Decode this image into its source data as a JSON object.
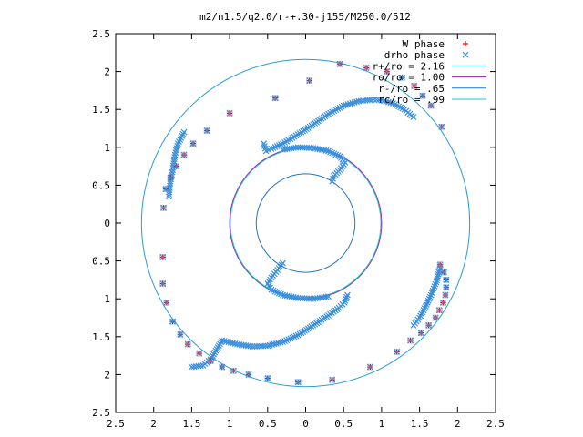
{
  "chart_data": {
    "type": "scatter",
    "title": "m2/n1.5/q2.0/r-+.30-j155/M250.0/512",
    "xlabel": "",
    "ylabel": "",
    "xlim": [
      -2.5,
      2.5
    ],
    "ylim": [
      -2.5,
      2.5
    ],
    "xtick_values": [
      -2.5,
      -2,
      -1.5,
      -1,
      -0.5,
      0,
      0.5,
      1,
      1.5,
      2,
      2.5
    ],
    "xtick_labels": [
      "2.5",
      "2",
      "1.5",
      "1",
      "0.5",
      "0",
      "0.5",
      "1",
      "1.5",
      "2",
      "2.5"
    ],
    "ytick_values": [
      2.5,
      2,
      1.5,
      1,
      0.5,
      0,
      -0.5,
      -1,
      -1.5,
      -2,
      -2.5
    ],
    "ytick_labels": [
      "2.5",
      "2",
      "1.5",
      "1",
      "0.5",
      "0",
      "0.5",
      "1",
      "1.5",
      "2",
      "2.5"
    ],
    "grid": false,
    "legend_position": "top-right",
    "series": [
      {
        "name": "W phase",
        "kind": "points",
        "marker": "plus",
        "color": "#ff0000",
        "x": [
          1.77,
          1.82,
          1.85,
          1.85,
          1.84,
          1.81,
          1.76,
          1.71,
          1.62,
          1.52,
          1.38,
          1.2,
          0.85,
          0.35,
          -0.1,
          -0.5,
          -0.75,
          -0.95,
          -1.1,
          -1.25,
          -1.4,
          -1.55,
          -1.65,
          -1.75,
          -1.83,
          -1.88,
          -1.88,
          -1.87,
          -1.84,
          -1.78,
          -1.7,
          -1.6,
          -1.48,
          -1.3,
          -1.0,
          -0.4,
          0.05,
          0.45,
          0.8,
          1.07,
          1.27,
          1.43,
          1.54,
          1.65,
          1.79
        ],
        "y": [
          -0.55,
          -0.65,
          -0.75,
          -0.85,
          -0.95,
          -1.05,
          -1.15,
          -1.25,
          -1.35,
          -1.45,
          -1.55,
          -1.7,
          -1.9,
          -2.07,
          -2.1,
          -2.05,
          -2.0,
          -1.95,
          -1.9,
          -1.82,
          -1.72,
          -1.6,
          -1.47,
          -1.3,
          -1.05,
          -0.8,
          -0.45,
          0.2,
          0.45,
          0.6,
          0.75,
          0.9,
          1.05,
          1.22,
          1.45,
          1.65,
          1.88,
          2.1,
          2.05,
          2.0,
          1.92,
          1.81,
          1.68,
          1.55,
          1.27
        ]
      },
      {
        "name": "drho phase",
        "kind": "points",
        "marker": "cross",
        "color": "#3a8fdc",
        "x": [
          1.77,
          1.82,
          1.85,
          1.85,
          1.84,
          1.81,
          1.76,
          1.71,
          1.62,
          1.52,
          1.38,
          1.2,
          0.85,
          0.35,
          -0.1,
          -0.5,
          -0.75,
          -0.95,
          -1.1,
          -1.25,
          -1.4,
          -1.55,
          -1.65,
          -1.75,
          -1.83,
          -1.88,
          -1.88,
          -1.87,
          -1.84,
          -1.78,
          -1.7,
          -1.6,
          -1.48,
          -1.3,
          -1.0,
          -0.4,
          0.05,
          0.45,
          0.8,
          1.07,
          1.27,
          1.43,
          1.54,
          1.65,
          1.79
        ],
        "y": [
          -0.55,
          -0.65,
          -0.75,
          -0.85,
          -0.95,
          -1.05,
          -1.15,
          -1.25,
          -1.35,
          -1.45,
          -1.55,
          -1.7,
          -1.9,
          -2.07,
          -2.1,
          -2.05,
          -2.0,
          -1.95,
          -1.9,
          -1.82,
          -1.72,
          -1.6,
          -1.47,
          -1.3,
          -1.05,
          -0.8,
          -0.45,
          0.2,
          0.45,
          0.6,
          0.75,
          0.9,
          1.05,
          1.22,
          1.45,
          1.65,
          1.88,
          2.1,
          2.05,
          2.0,
          1.92,
          1.81,
          1.68,
          1.55,
          1.27
        ]
      },
      {
        "name": "r+/ro = 2.16",
        "kind": "circle",
        "radius": 2.16,
        "color": "#2a9bd4"
      },
      {
        "name": "ro/ro = 1.00",
        "kind": "circle",
        "radius": 1.0,
        "color": "#9b1fb0"
      },
      {
        "name": "r-/ro = .65",
        "kind": "circle",
        "radius": 0.65,
        "color": "#2272c4"
      },
      {
        "name": "rc/ro = .99",
        "kind": "circle",
        "radius": 0.99,
        "color": "#25c7c7"
      }
    ],
    "dense_arms": [
      {
        "name": "upper arm",
        "color": "#3a8fdc",
        "x": [
          -0.55,
          -0.52,
          -0.45,
          -0.3,
          -0.1,
          0.1,
          0.3,
          0.5,
          0.7,
          0.9,
          1.0,
          1.15,
          1.3,
          1.42
        ],
        "y": [
          1.05,
          0.95,
          0.98,
          1.05,
          1.17,
          1.3,
          1.44,
          1.55,
          1.61,
          1.63,
          1.62,
          1.58,
          1.5,
          1.4
        ]
      },
      {
        "name": "lower arm",
        "color": "#3a8fdc",
        "x": [
          0.55,
          0.51,
          0.44,
          0.3,
          0.1,
          -0.1,
          -0.3,
          -0.5,
          -0.7,
          -0.9,
          -1.1,
          -1.25,
          -1.35,
          -1.5
        ],
        "y": [
          -0.95,
          -1.05,
          -1.12,
          -1.22,
          -1.35,
          -1.48,
          -1.57,
          -1.62,
          -1.63,
          -1.6,
          -1.55,
          -1.8,
          -1.88,
          -1.9
        ]
      },
      {
        "name": "inner arc top",
        "color": "#3a8fdc",
        "x": [
          -0.3,
          -0.1,
          0.1,
          0.3,
          0.45,
          0.52,
          0.45,
          0.37,
          0.35
        ],
        "y": [
          0.97,
          1.0,
          0.99,
          0.95,
          0.88,
          0.8,
          0.7,
          0.62,
          0.55
        ]
      },
      {
        "name": "inner arc bottom",
        "color": "#3a8fdc",
        "x": [
          0.3,
          0.1,
          -0.1,
          -0.3,
          -0.45,
          -0.5,
          -0.45,
          -0.37,
          -0.3
        ],
        "y": [
          -0.97,
          -1.0,
          -0.99,
          -0.95,
          -0.88,
          -0.8,
          -0.72,
          -0.62,
          -0.53
        ]
      },
      {
        "name": "right arm outer",
        "color": "#3a8fdc",
        "x": [
          1.42,
          1.5,
          1.58,
          1.65,
          1.72,
          1.77
        ],
        "y": [
          -1.35,
          -1.25,
          -1.1,
          -0.95,
          -0.78,
          -0.6
        ]
      },
      {
        "name": "left arm outer",
        "color": "#3a8fdc",
        "x": [
          -1.6,
          -1.68,
          -1.72,
          -1.75,
          -1.78,
          -1.8
        ],
        "y": [
          1.2,
          1.05,
          0.9,
          0.7,
          0.55,
          0.35
        ]
      }
    ]
  }
}
